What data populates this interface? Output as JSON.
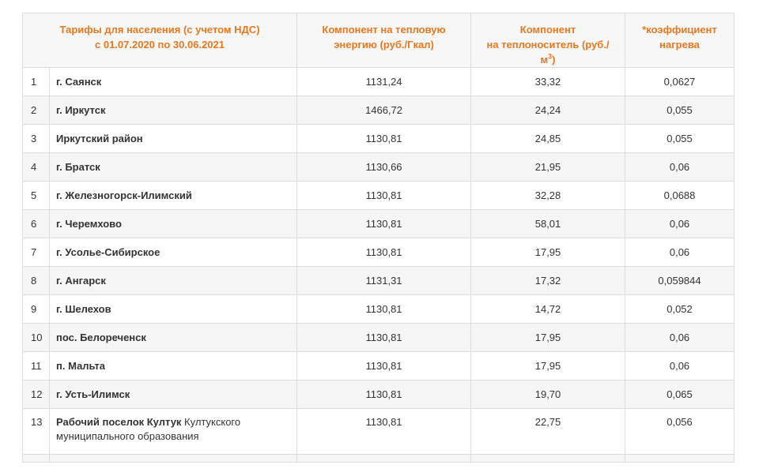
{
  "header": {
    "col_place_line1": "Тарифы для населения (с учетом НДС)",
    "col_place_line2": "с 01.07.2020 по 30.06.2021",
    "col_heat_line1": "Компонент на тепловую",
    "col_heat_line2": "энергию (руб./Гкал)",
    "col_carrier_line1": "Компонент",
    "col_carrier_line2": "на теплоноситель  (руб./",
    "col_carrier_line3": "м",
    "col_carrier_sup": "3",
    "col_carrier_line3_end": ")",
    "col_coef_line1": "*коэффициент",
    "col_coef_line2": "нагрева"
  },
  "rows": [
    {
      "idx": "1",
      "place": "г. Саянск",
      "heat": "1131,24",
      "carrier": "33,32",
      "coef": "0,0627"
    },
    {
      "idx": "2",
      "place": "г. Иркутск",
      "heat": "1466,72",
      "carrier": "24,24",
      "coef": "0,055"
    },
    {
      "idx": "3",
      "place": "Иркутский район",
      "heat": "1130,81",
      "carrier": "24,85",
      "coef": "0,055"
    },
    {
      "idx": "4",
      "place": "г. Братск",
      "heat": "1130,66",
      "carrier": "21,95",
      "coef": "0,06"
    },
    {
      "idx": "5",
      "place": "г. Железногорск-Илимский",
      "heat": "1130,81",
      "carrier": "32,28",
      "coef": "0,0688"
    },
    {
      "idx": "6",
      "place": "г. Черемхово",
      "heat": "1130,81",
      "carrier": "58,01",
      "coef": "0,06"
    },
    {
      "idx": "7",
      "place": "г. Усолье-Сибирское",
      "heat": "1130,81",
      "carrier": "17,95",
      "coef": "0,06"
    },
    {
      "idx": "8",
      "place": "г. Ангарск",
      "heat": "1131,31",
      "carrier": "17,32",
      "coef": "0,059844"
    },
    {
      "idx": "9",
      "place": "г. Шелехов",
      "heat": "1130,81",
      "carrier": "14,72",
      "coef": "0,052"
    },
    {
      "idx": "10",
      "place": "пос. Белореченск",
      "heat": "1130,81",
      "carrier": "17,95",
      "coef": "0,06"
    },
    {
      "idx": "11",
      "place": "п. Мальта",
      "heat": "1130,81",
      "carrier": "17,95",
      "coef": "0,06"
    },
    {
      "idx": "12",
      "place": "г. Усть-Илимск",
      "heat": "1130,81",
      "carrier": "19,70",
      "coef": "0,065"
    },
    {
      "idx": "13",
      "place": "Рабочий поселок Култук",
      "place_extra": " Култукского муниципального образования",
      "heat": "1130,81",
      "carrier": "22,75",
      "coef": "0,056"
    }
  ]
}
